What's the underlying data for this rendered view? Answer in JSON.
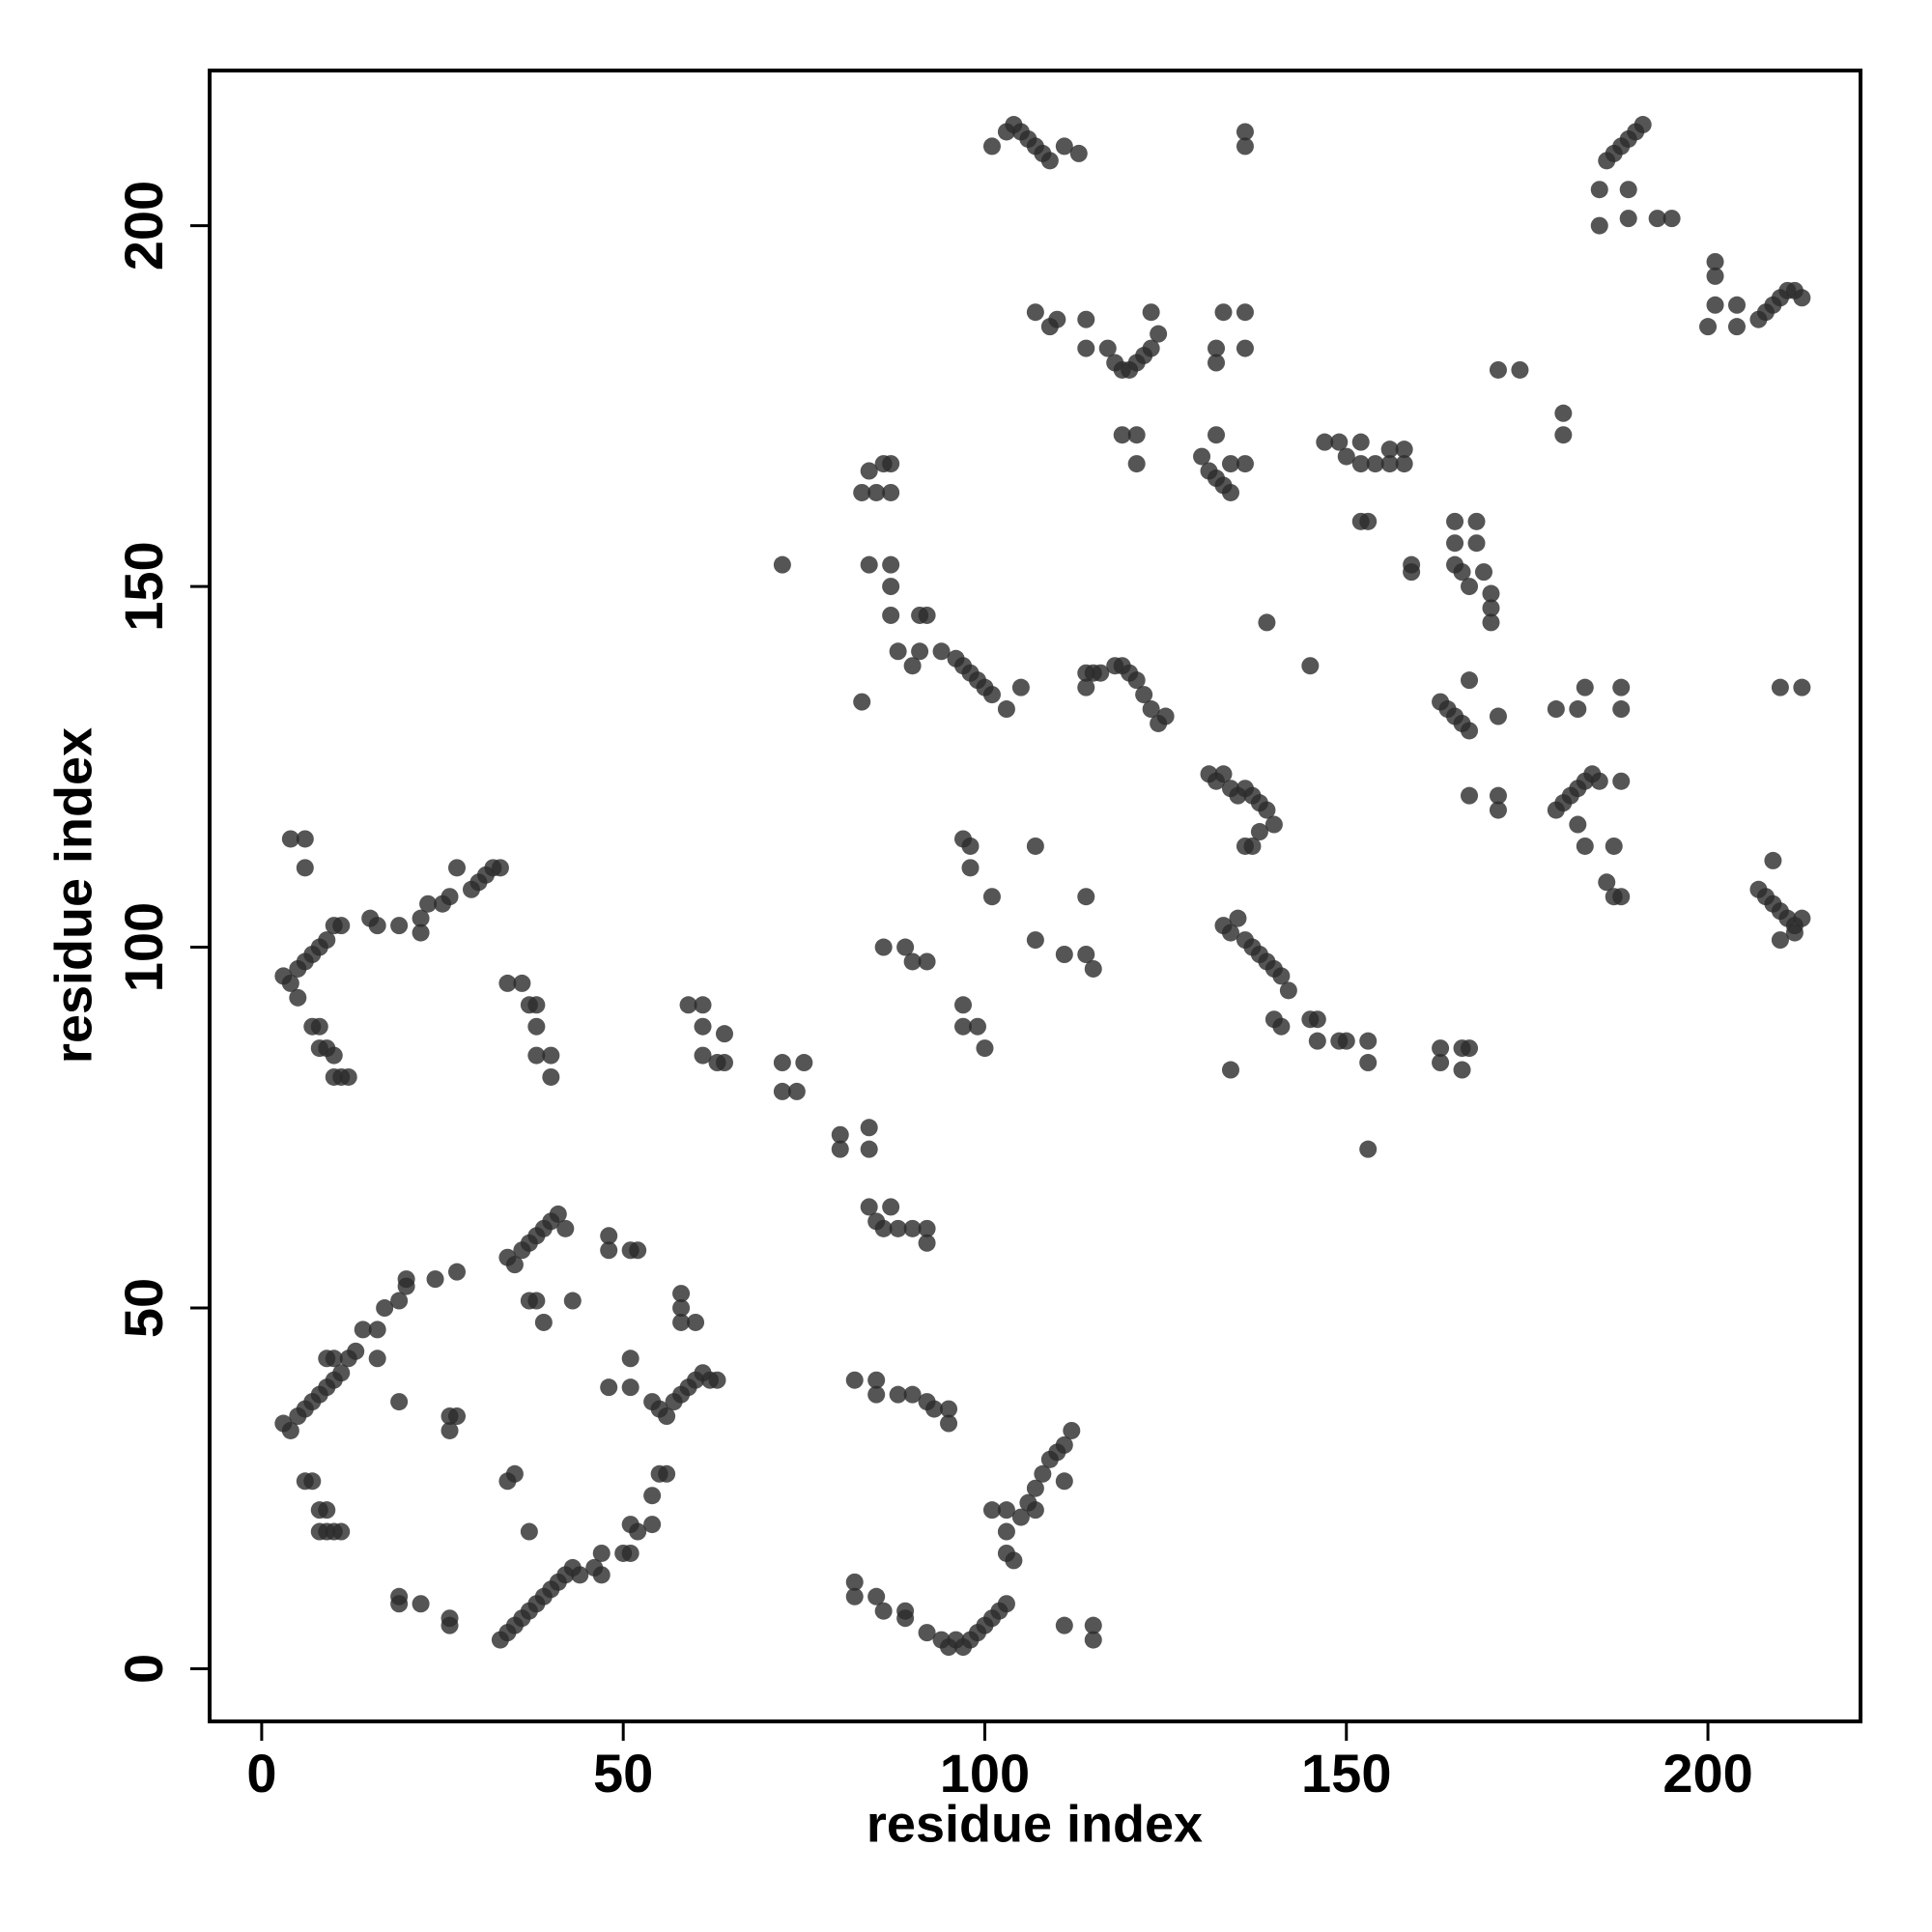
{
  "chart_data": {
    "type": "scatter",
    "xlabel": "residue index",
    "ylabel": "residue index",
    "color": "#2a2a2a",
    "xlim": [
      -7.2,
      221.1
    ],
    "ylim": [
      -7.3,
      221.5
    ],
    "xticks": [
      0,
      50,
      100,
      150,
      200
    ],
    "yticks": [
      0,
      50,
      100,
      150,
      200
    ],
    "x": [
      3,
      4,
      5,
      6,
      7,
      8,
      9,
      10,
      11,
      12,
      13,
      14,
      16,
      17,
      19,
      20,
      20,
      24,
      27,
      9,
      10,
      16,
      6,
      7,
      8,
      9,
      8,
      9,
      10,
      11,
      19,
      26,
      27,
      26,
      19,
      19,
      22,
      26,
      26,
      33,
      34,
      35,
      36,
      37,
      38,
      39,
      40,
      41,
      42,
      43,
      44,
      46,
      47,
      47,
      50,
      51,
      52,
      51,
      54,
      54,
      55,
      56,
      37,
      34,
      35,
      34,
      35,
      36,
      37,
      38,
      39,
      40,
      41,
      42,
      37,
      38,
      39,
      43,
      48,
      48,
      51,
      52,
      51,
      51,
      48,
      54,
      55,
      56,
      57,
      58,
      59,
      60,
      61,
      62,
      63,
      58,
      58,
      58,
      60,
      3,
      4,
      5,
      6,
      7,
      8,
      9,
      10,
      11,
      15,
      16,
      19,
      22,
      22,
      23,
      25,
      26,
      27,
      29,
      30,
      31,
      32,
      33,
      4,
      6,
      6,
      5,
      7,
      8,
      8,
      9,
      10,
      10,
      11,
      12,
      34,
      36,
      37,
      38,
      38,
      38,
      40,
      40,
      59,
      61,
      61,
      64,
      61,
      63,
      64,
      72,
      75,
      72,
      74,
      80,
      80,
      84,
      84,
      84,
      85,
      86,
      87,
      88,
      90,
      92,
      92,
      82,
      85,
      85,
      88,
      90,
      92,
      93,
      95,
      95,
      82,
      82,
      85,
      86,
      89,
      89,
      92,
      94,
      95,
      96,
      97,
      98,
      99,
      100,
      101,
      102,
      103,
      101,
      103,
      103,
      103,
      104,
      105,
      106,
      107,
      107,
      108,
      109,
      110,
      111,
      112,
      111,
      111,
      115,
      115,
      83,
      84,
      86,
      87,
      87,
      85,
      84,
      87,
      87,
      87,
      88,
      90,
      91,
      92,
      72,
      83,
      91,
      94,
      96,
      97,
      98,
      99,
      100,
      101,
      103,
      105,
      97,
      98,
      98,
      101,
      107,
      107,
      111,
      114,
      114,
      115,
      86,
      89,
      90,
      92,
      97,
      97,
      99,
      100,
      114,
      115,
      114,
      116,
      118,
      119,
      120,
      121,
      122,
      123,
      124,
      125,
      107,
      109,
      110,
      114,
      114,
      117,
      118,
      119,
      120,
      121,
      122,
      123,
      124,
      123,
      119,
      121,
      121,
      101,
      103,
      104,
      105,
      106,
      107,
      108,
      109,
      111,
      113,
      136,
      136,
      130,
      131,
      132,
      133,
      134,
      132,
      134,
      136,
      132,
      132,
      133,
      136,
      136,
      131,
      132,
      133,
      134,
      135,
      136,
      137,
      138,
      139,
      140,
      136,
      137,
      138,
      133,
      134,
      135,
      136,
      137,
      138,
      139,
      140,
      141,
      142,
      140,
      141,
      134,
      145,
      146,
      146,
      149,
      150,
      153,
      153,
      153,
      145,
      139,
      147,
      149,
      150,
      152,
      152,
      154,
      156,
      156,
      158,
      158,
      152,
      153,
      159,
      159,
      165,
      165,
      165,
      166,
      167,
      168,
      168,
      169,
      170,
      170,
      170,
      163,
      164,
      165,
      166,
      167,
      171,
      167,
      167,
      171,
      171,
      163,
      163,
      166,
      166,
      167,
      171,
      174,
      180,
      180,
      179,
      180,
      181,
      182,
      183,
      184,
      185,
      188,
      182,
      183,
      187,
      186,
      187,
      188,
      179,
      182,
      183,
      188,
      188,
      185,
      185,
      186,
      187,
      188,
      189,
      190,
      191,
      189,
      189,
      193,
      195,
      200,
      201,
      201,
      201,
      204,
      204,
      207,
      208,
      209,
      210,
      211,
      212,
      213,
      207,
      208,
      209,
      210,
      211,
      212,
      213,
      209,
      210,
      212,
      210,
      213
    ],
    "values": [
      34,
      33,
      35,
      36,
      37,
      38,
      39,
      40,
      41,
      43,
      44,
      47,
      47,
      50,
      51,
      53,
      54,
      54,
      55,
      43,
      43,
      43,
      26,
      26,
      22,
      22,
      19,
      19,
      19,
      19,
      37,
      33,
      35,
      35,
      10,
      9,
      9,
      7,
      6,
      4,
      5,
      6,
      7,
      8,
      9,
      10,
      11,
      12,
      13,
      14,
      13,
      14,
      16,
      13,
      16,
      20,
      19,
      16,
      20,
      24,
      27,
      27,
      19,
      26,
      27,
      57,
      56,
      58,
      59,
      60,
      61,
      62,
      63,
      61,
      51,
      51,
      48,
      51,
      58,
      60,
      58,
      58,
      43,
      39,
      39,
      37,
      36,
      35,
      37,
      38,
      39,
      40,
      41,
      40,
      40,
      50,
      52,
      48,
      48,
      96,
      95,
      97,
      98,
      99,
      100,
      101,
      103,
      103,
      104,
      103,
      103,
      102,
      104,
      106,
      106,
      107,
      111,
      108,
      109,
      110,
      111,
      111,
      115,
      115,
      111,
      93,
      89,
      89,
      86,
      86,
      85,
      82,
      82,
      82,
      95,
      95,
      92,
      92,
      89,
      85,
      85,
      82,
      92,
      92,
      89,
      88,
      85,
      84,
      84,
      84,
      84,
      80,
      80,
      74,
      72,
      75,
      72,
      64,
      62,
      61,
      64,
      61,
      61,
      61,
      59,
      40,
      40,
      38,
      38,
      38,
      37,
      36,
      36,
      34,
      12,
      10,
      10,
      8,
      8,
      7,
      5,
      4,
      3,
      4,
      3,
      4,
      5,
      6,
      7,
      8,
      9,
      22,
      22,
      19,
      16,
      15,
      21,
      23,
      25,
      22,
      27,
      29,
      30,
      31,
      33,
      26,
      6,
      6,
      4,
      163,
      166,
      167,
      167,
      163,
      163,
      153,
      153,
      150,
      146,
      141,
      139,
      146,
      146,
      153,
      134,
      141,
      141,
      140,
      139,
      138,
      137,
      136,
      135,
      133,
      136,
      115,
      114,
      111,
      107,
      114,
      101,
      99,
      107,
      99,
      97,
      100,
      100,
      98,
      98,
      92,
      89,
      89,
      86,
      138,
      138,
      136,
      138,
      139,
      139,
      138,
      137,
      135,
      133,
      131,
      132,
      188,
      186,
      187,
      187,
      183,
      183,
      181,
      180,
      180,
      181,
      182,
      183,
      185,
      188,
      171,
      171,
      167,
      211,
      213,
      214,
      213,
      212,
      211,
      210,
      209,
      211,
      210,
      213,
      211,
      168,
      166,
      165,
      164,
      163,
      171,
      167,
      167,
      181,
      183,
      188,
      188,
      183,
      124,
      123,
      124,
      122,
      121,
      122,
      121,
      120,
      119,
      117,
      114,
      114,
      116,
      103,
      102,
      104,
      101,
      100,
      99,
      98,
      97,
      96,
      94,
      90,
      89,
      83,
      90,
      90,
      87,
      87,
      87,
      87,
      84,
      72,
      139,
      145,
      170,
      170,
      168,
      170,
      167,
      167,
      167,
      169,
      169,
      167,
      159,
      159,
      153,
      152,
      159,
      156,
      153,
      152,
      150,
      159,
      156,
      152,
      149,
      147,
      145,
      134,
      133,
      132,
      131,
      130,
      132,
      137,
      121,
      121,
      119,
      86,
      84,
      86,
      83,
      86,
      180,
      180,
      174,
      171,
      119,
      120,
      121,
      122,
      123,
      124,
      123,
      123,
      117,
      114,
      114,
      109,
      107,
      107,
      133,
      133,
      136,
      136,
      133,
      205,
      200,
      209,
      210,
      211,
      212,
      213,
      214,
      205,
      201,
      201,
      201,
      186,
      189,
      195,
      193,
      189,
      186,
      187,
      188,
      189,
      190,
      191,
      191,
      190,
      108,
      107,
      106,
      105,
      104,
      103,
      104,
      112,
      101,
      102,
      136,
      136
    ]
  }
}
